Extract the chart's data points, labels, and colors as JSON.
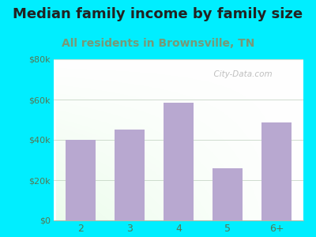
{
  "title": "Median family income by family size",
  "subtitle": "All residents in Brownsville, TN",
  "categories": [
    "2",
    "3",
    "4",
    "5",
    "6+"
  ],
  "values": [
    40000,
    45000,
    58500,
    26000,
    48500
  ],
  "bar_color": "#b8a8d0",
  "background_outer": "#00eeff",
  "title_color": "#222222",
  "subtitle_color": "#779977",
  "title_fontsize": 13,
  "subtitle_fontsize": 10,
  "ylabel_ticks": [
    "$0",
    "$20k",
    "$40k",
    "$60k",
    "$80k"
  ],
  "ytick_values": [
    0,
    20000,
    40000,
    60000,
    80000
  ],
  "ylim": [
    0,
    80000
  ],
  "grid_color": "#bbccbb",
  "watermark": "City-Data.com",
  "tick_color": "#557755",
  "bg_grad_left": "#d4ecd4",
  "bg_grad_right": "#f0f8f0",
  "bg_top": "#f5f5f8"
}
